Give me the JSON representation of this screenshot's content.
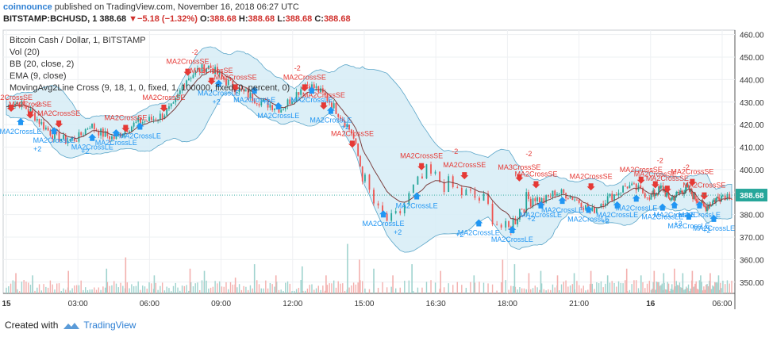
{
  "header": {
    "brand": "coinnounce",
    "published_text": "published on TradingView.com, November 16, 2018 06:27 UTC",
    "symbol": "BITSTAMP:BCHUSD, 1",
    "last_price": "388.68",
    "change_arrow": "▼",
    "change": "−5.18 (−1.32%)",
    "o_label": "O:",
    "o_value": "388.68",
    "h_label": "H:",
    "h_value": "388.68",
    "l_label": "L:",
    "l_value": "388.68",
    "c_label": "C:",
    "c_value": "388.68"
  },
  "legend": {
    "title": "Bitcoin Cash / Dollar, 1, BITSTAMP",
    "vol": "Vol (20)",
    "bb": "BB (20, close, 2)",
    "ema": "EMA (9, close)",
    "strategy": "MovingAvg2Line Cross (9, 18, 1, 0, fixed, 1, 100000, fixed, 0, percent, 0)"
  },
  "footer": {
    "created_with": "Created with",
    "brand": "TradingView"
  },
  "colors": {
    "up": "#26a69a",
    "down": "#ef5350",
    "bb_fill": "#d6ecf6",
    "bb_line": "#5aa5c8",
    "ema": "#7b3f3f",
    "signal_le": "#2196f3",
    "signal_se": "#e53935",
    "price_line": "#26a69a"
  },
  "chart_data": {
    "type": "candlestick",
    "ylim": [
      345,
      462
    ],
    "yticks": [
      350,
      360,
      370,
      380,
      390,
      400,
      410,
      420,
      430,
      440,
      450,
      460
    ],
    "xticks": [
      {
        "label": "15",
        "t": 0
      },
      {
        "label": "03:00",
        "t": 3
      },
      {
        "label": "06:00",
        "t": 6
      },
      {
        "label": "09:00",
        "t": 9
      },
      {
        "label": "12:00",
        "t": 12
      },
      {
        "label": "15:00",
        "t": 15
      },
      {
        "label": "16:30",
        "t": 16.5
      },
      {
        "label": "18:00",
        "t": 18
      },
      {
        "label": "21:00",
        "t": 21
      },
      {
        "label": "16",
        "t": 24
      },
      {
        "label": "06:00",
        "t": 30
      }
    ],
    "time_map": [
      [
        0,
        0
      ],
      [
        15,
        15
      ],
      [
        16.5,
        18
      ],
      [
        18,
        21
      ],
      [
        21,
        24
      ],
      [
        24,
        27
      ],
      [
        30,
        30
      ]
    ],
    "time_range": [
      0,
      30.4
    ],
    "last_price_label": "388.68",
    "price_path": [
      [
        0,
        428
      ],
      [
        0.5,
        430
      ],
      [
        1,
        426
      ],
      [
        1.5,
        420
      ],
      [
        2,
        415
      ],
      [
        2.5,
        413
      ],
      [
        3,
        414
      ],
      [
        3.5,
        420
      ],
      [
        4,
        416
      ],
      [
        4.5,
        414
      ],
      [
        5,
        418
      ],
      [
        5.5,
        421
      ],
      [
        6,
        422
      ],
      [
        6.5,
        424
      ],
      [
        7,
        428
      ],
      [
        7.5,
        440
      ],
      [
        8,
        444
      ],
      [
        8.5,
        446
      ],
      [
        9,
        441
      ],
      [
        9.5,
        437
      ],
      [
        10,
        434
      ],
      [
        10.5,
        431
      ],
      [
        11,
        429
      ],
      [
        11.5,
        427
      ],
      [
        12,
        432
      ],
      [
        12.5,
        438
      ],
      [
        13,
        436
      ],
      [
        13.5,
        431
      ],
      [
        14,
        424
      ],
      [
        14.5,
        416
      ],
      [
        15,
        395
      ],
      [
        15.3,
        380
      ],
      [
        15.6,
        376
      ],
      [
        16,
        390
      ],
      [
        16.3,
        398
      ],
      [
        16.5,
        396
      ],
      [
        17,
        390
      ],
      [
        17.5,
        386
      ],
      [
        17.8,
        376
      ],
      [
        18,
        372
      ],
      [
        18.3,
        378
      ],
      [
        18.6,
        384
      ],
      [
        19,
        388
      ],
      [
        19.5,
        386
      ],
      [
        20,
        390
      ],
      [
        20.5,
        389
      ],
      [
        21,
        386
      ],
      [
        21.5,
        381
      ],
      [
        22,
        386
      ],
      [
        22.5,
        389
      ],
      [
        23,
        393
      ],
      [
        23.5,
        391
      ],
      [
        24,
        388
      ],
      [
        24.5,
        390
      ],
      [
        25,
        392
      ],
      [
        25.5,
        387
      ],
      [
        26,
        388
      ],
      [
        26.5,
        390
      ],
      [
        27,
        392
      ],
      [
        27.5,
        389
      ],
      [
        28,
        386
      ],
      [
        28.5,
        383
      ],
      [
        29,
        385
      ],
      [
        29.5,
        387
      ],
      [
        30,
        388.68
      ]
    ],
    "volume_spikes": [
      [
        0.4,
        354
      ],
      [
        1.1,
        353
      ],
      [
        2.6,
        355
      ],
      [
        4.2,
        356
      ],
      [
        5.0,
        361
      ],
      [
        6.2,
        353
      ],
      [
        7.7,
        356
      ],
      [
        8.3,
        355
      ],
      [
        9.6,
        352
      ],
      [
        10.4,
        358
      ],
      [
        11.3,
        353
      ],
      [
        12.4,
        357
      ],
      [
        13.4,
        353
      ],
      [
        14.3,
        367
      ],
      [
        14.8,
        360
      ],
      [
        15.2,
        356
      ],
      [
        15.6,
        353
      ],
      [
        16.0,
        358
      ],
      [
        16.6,
        355
      ],
      [
        17.3,
        353
      ],
      [
        17.9,
        360
      ],
      [
        18.3,
        358
      ],
      [
        18.9,
        354
      ],
      [
        19.4,
        355
      ],
      [
        20.1,
        353
      ],
      [
        20.8,
        354
      ],
      [
        21.5,
        355
      ],
      [
        22.2,
        353
      ],
      [
        23.0,
        356
      ],
      [
        23.6,
        353
      ],
      [
        24.3,
        355
      ],
      [
        25.1,
        354
      ],
      [
        26.0,
        356
      ],
      [
        26.7,
        354
      ],
      [
        27.5,
        355
      ],
      [
        28.2,
        353
      ],
      [
        29.0,
        354
      ],
      [
        29.7,
        353
      ]
    ],
    "short_signals": [
      {
        "t": 0.2,
        "p": 431,
        "label": "MA2CrossSE"
      },
      {
        "t": 1.0,
        "p": 428,
        "label": "MA2CrossSE"
      },
      {
        "t": 2.2,
        "p": 424,
        "label": "MA2CrossSE"
      },
      {
        "t": 5.0,
        "p": 422,
        "label": "MA2CrossSE"
      },
      {
        "t": 6.6,
        "p": 431,
        "label": "MA2CrossSE"
      },
      {
        "t": 7.6,
        "p": 447,
        "label": "MA2CrossSE"
      },
      {
        "t": 8.6,
        "p": 443,
        "label": "MA2CrossSE"
      },
      {
        "t": 9.6,
        "p": 440,
        "label": "MA2CrossSE"
      },
      {
        "t": 12.5,
        "p": 440,
        "label": "MA2CrossSE"
      },
      {
        "t": 13.3,
        "p": 432,
        "label": "MA2CrossSE"
      },
      {
        "t": 14.5,
        "p": 415,
        "label": "MA2CrossSE"
      },
      {
        "t": 16.2,
        "p": 405,
        "label": "MA2CrossSE"
      },
      {
        "t": 17.1,
        "p": 401,
        "label": "MA2CrossSE"
      },
      {
        "t": 18.5,
        "p": 400,
        "label": "MA3CrossSE"
      },
      {
        "t": 19.2,
        "p": 397,
        "label": "MA2CrossSE"
      },
      {
        "t": 21.5,
        "p": 396,
        "label": "MA2CrossSE"
      },
      {
        "t": 23.6,
        "p": 399,
        "label": "MA2CrossSE"
      },
      {
        "t": 24.4,
        "p": 397,
        "label": "MA2CrossSE"
      },
      {
        "t": 25.4,
        "p": 395,
        "label": "MA2CrossSE"
      },
      {
        "t": 27.5,
        "p": 398,
        "label": "MA2CrossSE"
      },
      {
        "t": 28.5,
        "p": 392,
        "label": "MA2CrossSE"
      }
    ],
    "long_signals": [
      {
        "t": 0.6,
        "p": 418,
        "label": "MA2CrossLE"
      },
      {
        "t": 2.0,
        "p": 414,
        "label": "MA2CrossLE"
      },
      {
        "t": 3.6,
        "p": 411,
        "label": "MA2CrossLE"
      },
      {
        "t": 4.6,
        "p": 413,
        "label": "MA2CrossLE"
      },
      {
        "t": 5.6,
        "p": 416,
        "label": "MA2CrossLE"
      },
      {
        "t": 8.9,
        "p": 435,
        "label": "MA2CrossLE"
      },
      {
        "t": 10.4,
        "p": 432,
        "label": "MA2CrossLE"
      },
      {
        "t": 11.4,
        "p": 425,
        "label": "MA2CrossLE"
      },
      {
        "t": 12.8,
        "p": 432,
        "label": "MA2CrossLE"
      },
      {
        "t": 13.6,
        "p": 423,
        "label": "MA2CrossLE"
      },
      {
        "t": 15.4,
        "p": 377,
        "label": "MA2CrossLE"
      },
      {
        "t": 16.1,
        "p": 385,
        "label": "MA2CrossLE"
      },
      {
        "t": 17.4,
        "p": 373,
        "label": "MA2CrossLE"
      },
      {
        "t": 18.2,
        "p": 370,
        "label": "MA2CrossLE"
      },
      {
        "t": 19.4,
        "p": 381,
        "label": "MA2CrossLE"
      },
      {
        "t": 20.3,
        "p": 383,
        "label": "MA2CrossLE"
      },
      {
        "t": 21.4,
        "p": 379,
        "label": "MA2CrossLE"
      },
      {
        "t": 22.6,
        "p": 381,
        "label": "MA2CrossLE"
      },
      {
        "t": 23.4,
        "p": 384,
        "label": "MA2CrossLE"
      },
      {
        "t": 25.0,
        "p": 380,
        "label": "MA2CrossLE"
      },
      {
        "t": 26.0,
        "p": 381,
        "label": "MA2CrossLE"
      },
      {
        "t": 27.2,
        "p": 376,
        "label": "MA2CrossLE"
      },
      {
        "t": 28.1,
        "p": 381,
        "label": "MA2CrossLE"
      },
      {
        "t": 29.3,
        "p": 375,
        "label": "MA2CrossLE"
      }
    ],
    "short_tags": [
      {
        "t": 1.3,
        "p": 428,
        "label": "-2"
      },
      {
        "t": 7.9,
        "p": 451,
        "label": "-2"
      },
      {
        "t": 12.2,
        "p": 444,
        "label": "-2"
      },
      {
        "t": 16.9,
        "p": 407,
        "label": "-2"
      },
      {
        "t": 18.9,
        "p": 406,
        "label": "-2"
      },
      {
        "t": 24.8,
        "p": 403,
        "label": "-2"
      },
      {
        "t": 27.0,
        "p": 400,
        "label": "-2"
      }
    ],
    "long_tags": [
      {
        "t": 1.3,
        "p": 408,
        "label": "+2"
      },
      {
        "t": 3.3,
        "p": 407,
        "label": "+2"
      },
      {
        "t": 8.8,
        "p": 429,
        "label": "+2"
      },
      {
        "t": 10.9,
        "p": 429,
        "label": "+2"
      },
      {
        "t": 14.2,
        "p": 418,
        "label": "+2"
      },
      {
        "t": 15.7,
        "p": 371,
        "label": "+2"
      },
      {
        "t": 17.0,
        "p": 370,
        "label": "+2"
      },
      {
        "t": 19.0,
        "p": 377,
        "label": "+2"
      },
      {
        "t": 22.1,
        "p": 376,
        "label": "+2"
      },
      {
        "t": 26.3,
        "p": 375,
        "label": "+2"
      },
      {
        "t": 28.7,
        "p": 372,
        "label": "+2"
      }
    ]
  }
}
